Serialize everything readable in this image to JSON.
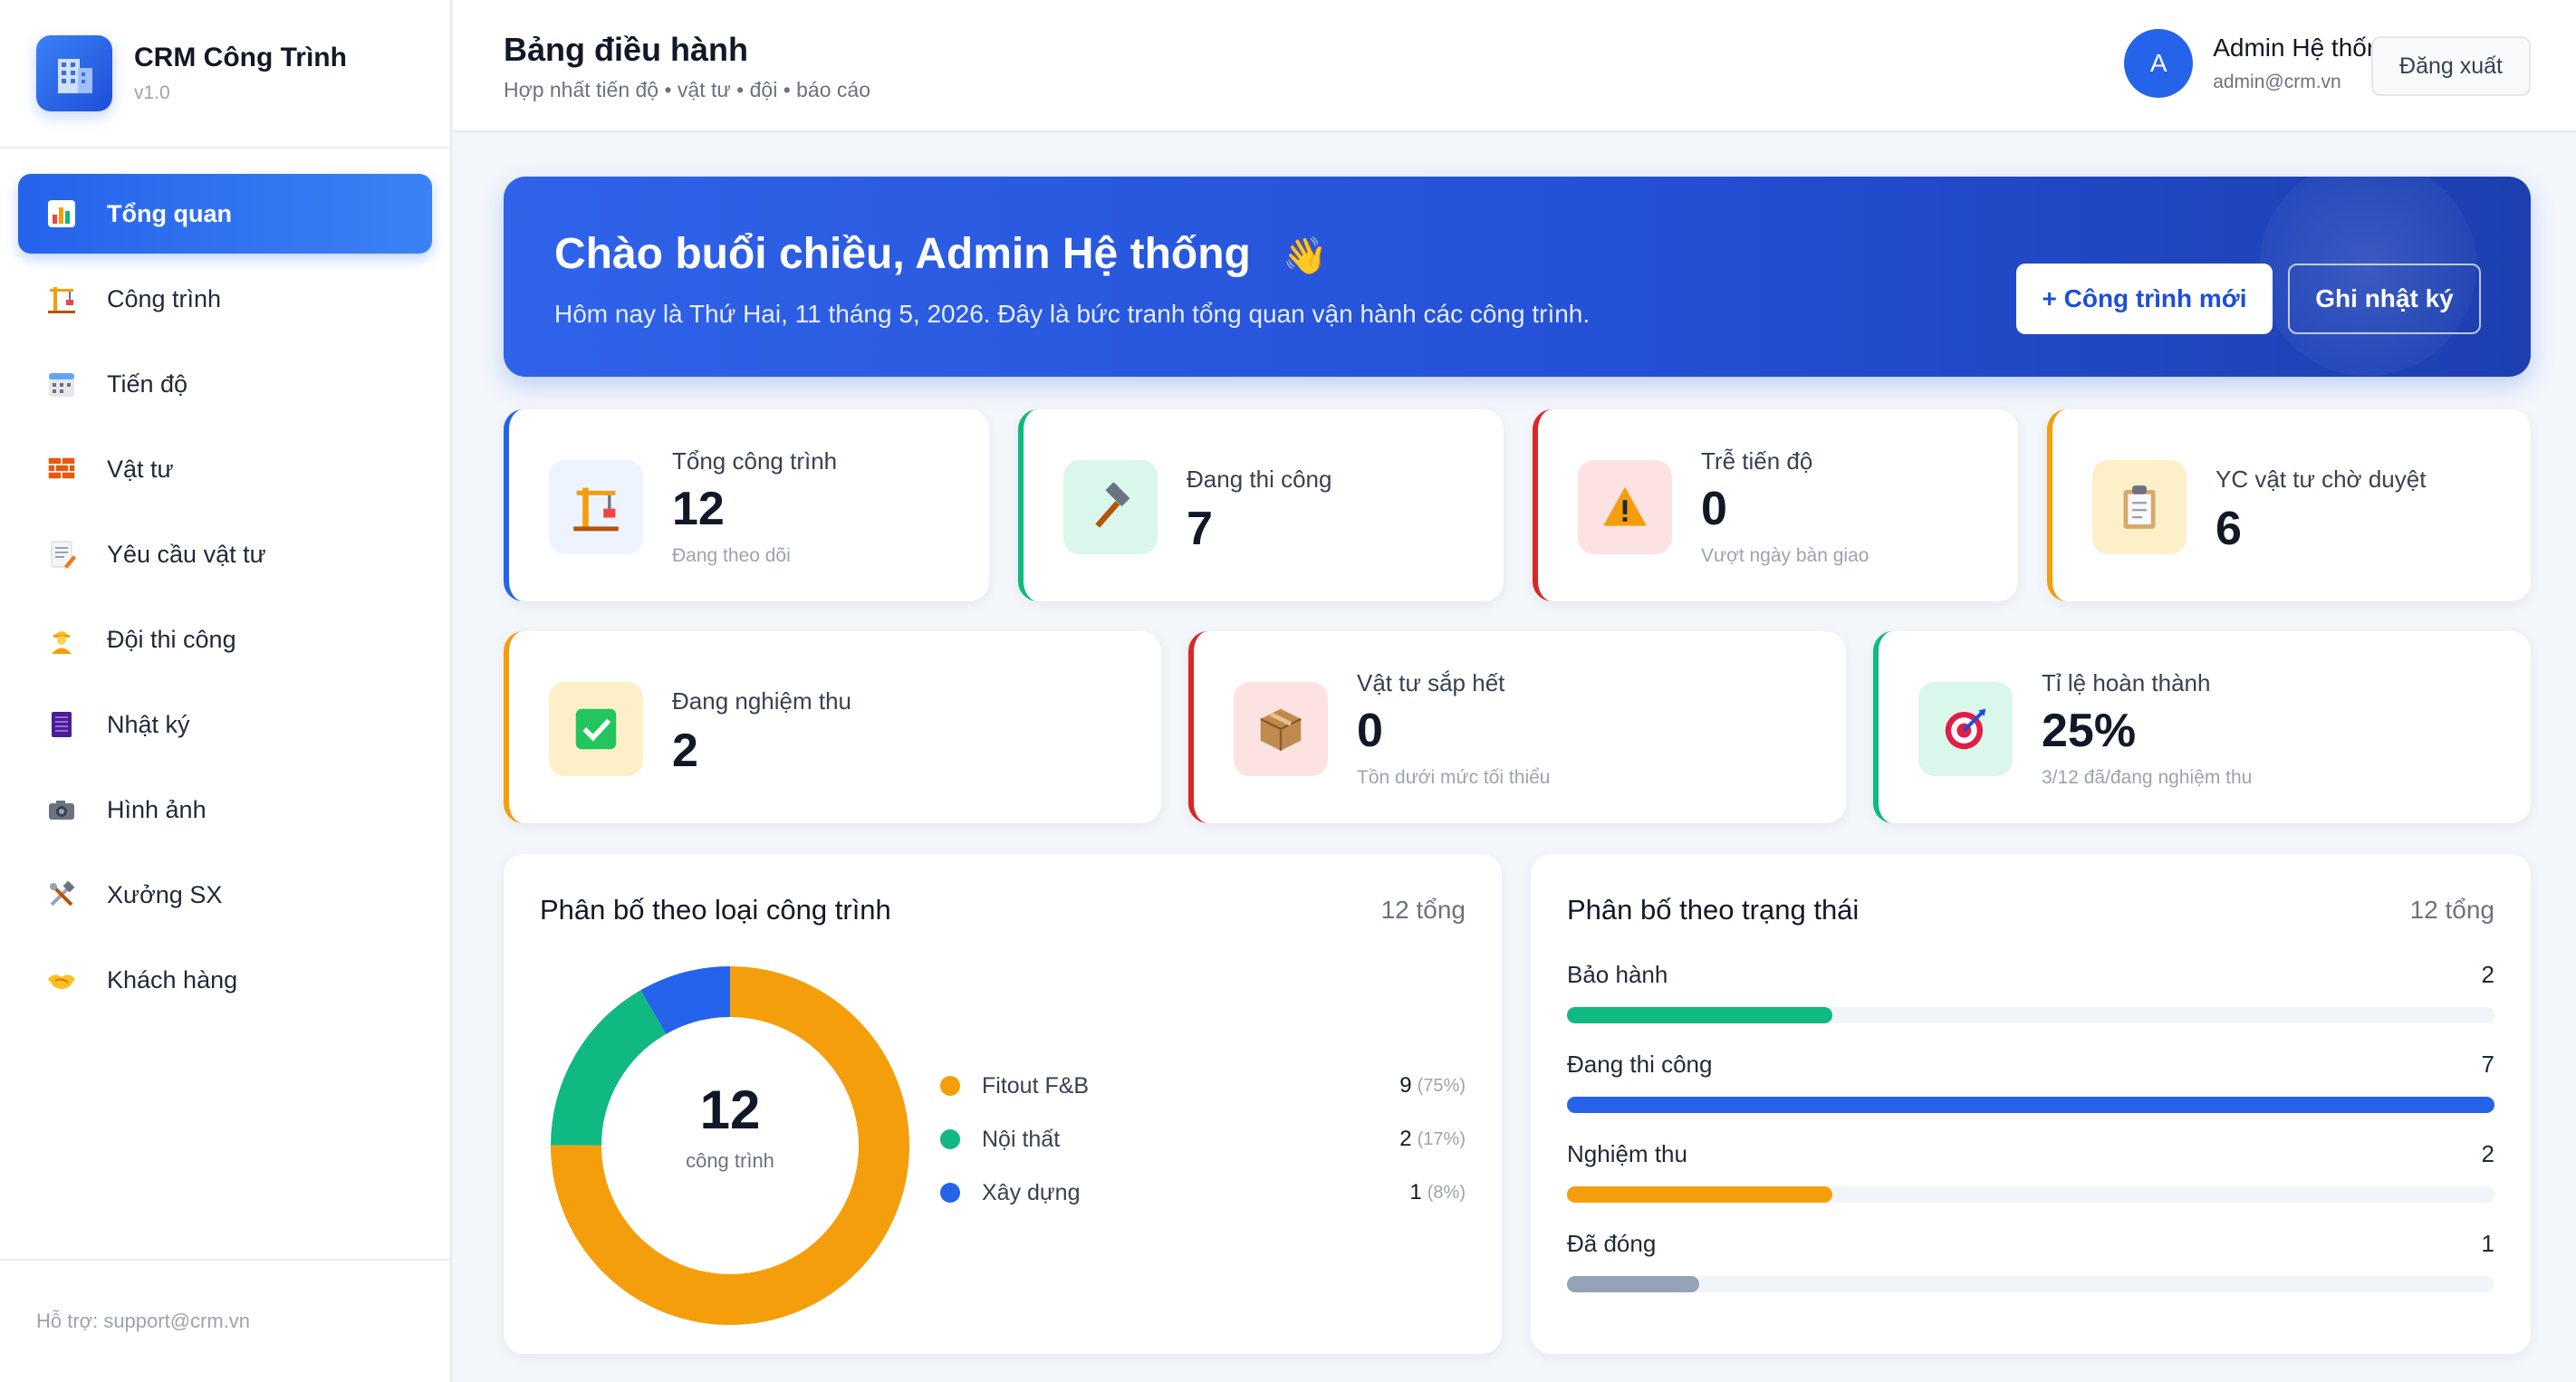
{
  "app": {
    "name": "CRM Công Trình",
    "version": "v1.0"
  },
  "sidebar": {
    "items": [
      {
        "label": "Tổng quan",
        "icon": "bar-chart-icon",
        "active": true
      },
      {
        "label": "Công trình",
        "icon": "crane-icon"
      },
      {
        "label": "Tiến độ",
        "icon": "calendar-icon"
      },
      {
        "label": "Vật tư",
        "icon": "bricks-icon"
      },
      {
        "label": "Yêu cầu vật tư",
        "icon": "memo-icon"
      },
      {
        "label": "Đội thi công",
        "icon": "worker-icon"
      },
      {
        "label": "Nhật ký",
        "icon": "notebook-icon"
      },
      {
        "label": "Hình ảnh",
        "icon": "camera-icon"
      },
      {
        "label": "Xưởng SX",
        "icon": "tools-icon"
      },
      {
        "label": "Khách hàng",
        "icon": "handshake-icon"
      }
    ],
    "footer": "Hỗ trợ: support@crm.vn"
  },
  "header": {
    "title": "Bảng điều hành",
    "subtitle": "Hợp nhất tiến độ • vật tư • đội • báo cáo",
    "user": {
      "initial": "A",
      "name": "Admin Hệ thống",
      "email": "admin@crm.vn"
    },
    "logout_label": "Đăng xuất"
  },
  "hero": {
    "title": "Chào buổi chiều, Admin Hệ thống",
    "emoji": "👋",
    "subtitle": "Hôm nay là Thứ Hai, 11 tháng 5, 2026. Đây là bức tranh tổng quan vận hành các công trình.",
    "new_button": "+ Công trình mới",
    "log_button": "Ghi nhật ký"
  },
  "stats": [
    {
      "label": "Tổng công trình",
      "value": "12",
      "note": "Đang theo dõi",
      "accent": "#2563eb",
      "icon": "crane-icon"
    },
    {
      "label": "Đang thi công",
      "value": "7",
      "note": "",
      "accent": "#10b981",
      "icon": "hammer-icon"
    },
    {
      "label": "Trễ tiến độ",
      "value": "0",
      "note": "Vượt ngày bàn giao",
      "accent": "#dc2626",
      "icon": "warning-icon"
    },
    {
      "label": "YC vật tư chờ duyệt",
      "value": "6",
      "note": "",
      "accent": "#f59e0b",
      "icon": "clipboard-icon"
    },
    {
      "label": "Đang nghiệm thu",
      "value": "2",
      "note": "",
      "accent": "#f59e0b",
      "icon": "check-box-icon"
    },
    {
      "label": "Vật tư sắp hết",
      "value": "0",
      "note": "Tồn dưới mức tối thiểu",
      "accent": "#dc2626",
      "icon": "package-icon"
    },
    {
      "label": "Tỉ lệ hoàn thành",
      "value": "25%",
      "note": "3/12 đã/đang nghiệm thu",
      "accent": "#10b981",
      "icon": "target-icon"
    }
  ],
  "type_panel": {
    "title": "Phân bố theo loại công trình",
    "total": "12 tổng",
    "center_value": "12",
    "center_label": "công trình"
  },
  "status_panel": {
    "title": "Phân bố theo trạng thái",
    "total": "12 tổng"
  },
  "chart_data": [
    {
      "type": "pie",
      "title": "Phân bố theo loại công trình",
      "categories": [
        "Fitout F&B",
        "Nội thất",
        "Xây dựng"
      ],
      "values": [
        9,
        2,
        1
      ],
      "percent_labels": [
        "(75%)",
        "(17%)",
        "(8%)"
      ],
      "colors": [
        "#f59e0b",
        "#10b981",
        "#2563eb"
      ],
      "donut": true
    },
    {
      "type": "bar",
      "title": "Phân bố theo trạng thái",
      "categories": [
        "Bảo hành",
        "Đang thi công",
        "Nghiệm thu",
        "Đã đóng"
      ],
      "values": [
        2,
        7,
        2,
        1
      ],
      "colors": [
        "#10b981",
        "#2563eb",
        "#f59e0b",
        "#94a3b8"
      ],
      "xlim": [
        0,
        7
      ],
      "orientation": "horizontal"
    }
  ]
}
